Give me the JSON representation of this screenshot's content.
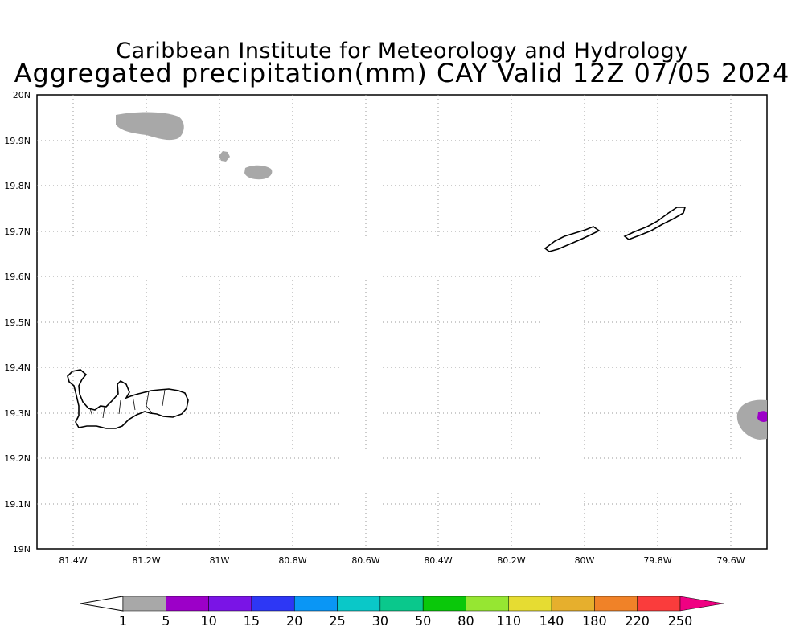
{
  "title": {
    "line1": "Caribbean Institute for Meteorology and Hydrology",
    "line2": "Aggregated precipitation(mm) CAY Valid 12Z 07/05 2024"
  },
  "map": {
    "lon_range": [
      -81.5,
      -79.5
    ],
    "lat_range": [
      19.0,
      20.0
    ],
    "grid": "dotted",
    "x_ticks": [
      "81.4W",
      "81.2W",
      "81W",
      "80.8W",
      "80.6W",
      "80.4W",
      "80.2W",
      "80W",
      "79.8W",
      "79.6W"
    ],
    "y_ticks": [
      "20N",
      "19.9N",
      "19.8N",
      "19.7N",
      "19.6N",
      "19.5N",
      "19.4N",
      "19.3N",
      "19.2N",
      "19.1N",
      "19N"
    ],
    "islands": [
      "Grand Cayman",
      "Little Cayman",
      "Cayman Brac"
    ]
  },
  "colorbar": {
    "labels": [
      "1",
      "5",
      "10",
      "15",
      "20",
      "25",
      "30",
      "50",
      "80",
      "110",
      "140",
      "180",
      "220",
      "250"
    ],
    "colors": [
      "#a8a8a8",
      "#9c00c8",
      "#7a14e6",
      "#2d37f5",
      "#0a96f5",
      "#0ac8c8",
      "#0ac88c",
      "#0ac80a",
      "#96e632",
      "#e6dc32",
      "#e6af2d",
      "#f08228",
      "#fa3c3c",
      "#f00082"
    ],
    "under_color": "#ffffff"
  },
  "precip_areas": [
    {
      "label": "gray",
      "color": "#a8a8a8"
    },
    {
      "label": "magenta",
      "color": "#9c00c8"
    }
  ]
}
